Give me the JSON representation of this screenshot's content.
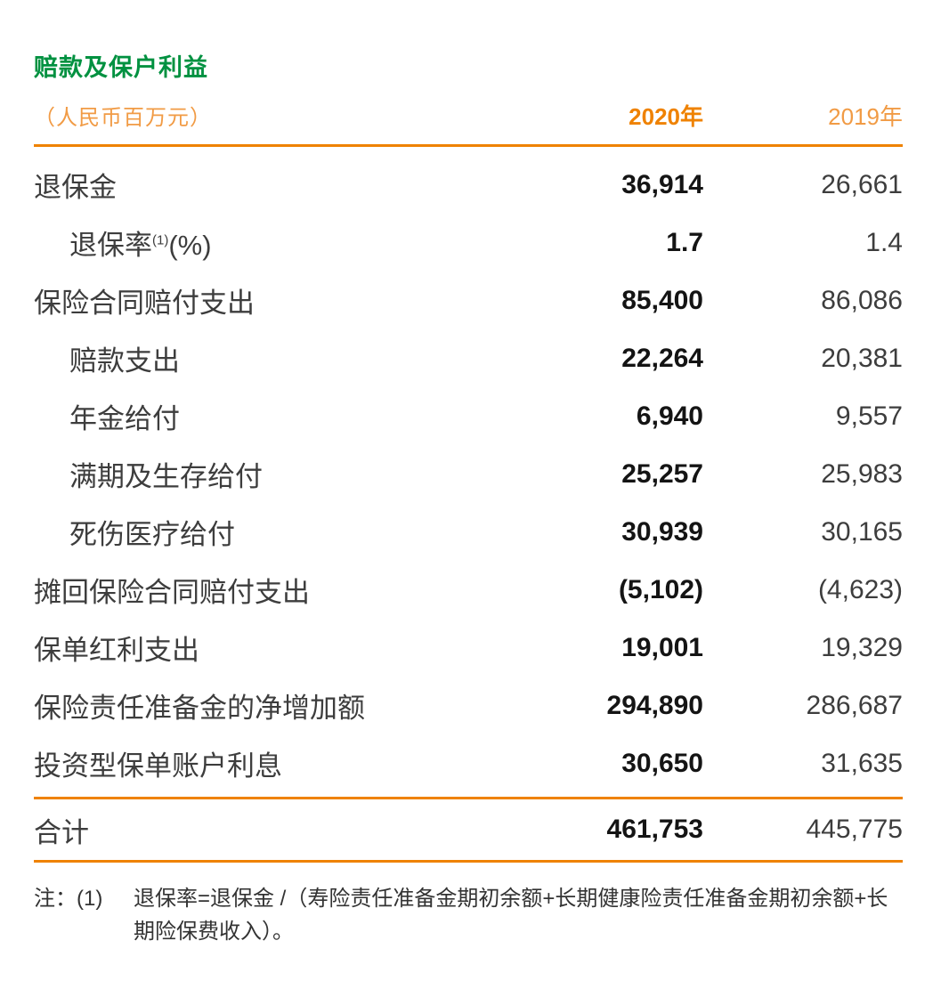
{
  "title": "赔款及保户利益",
  "unit_label": "（人民币百万元）",
  "columns": {
    "col2020": "2020年",
    "col2019": "2019年"
  },
  "rows": [
    {
      "label": "退保金",
      "indent": false,
      "v2020": "36,914",
      "v2019": "26,661"
    },
    {
      "label": "退保率",
      "sup": "(1)",
      "suffix": "(%)",
      "indent": true,
      "v2020": "1.7",
      "v2019": "1.4"
    },
    {
      "label": "保险合同赔付支出",
      "indent": false,
      "v2020": "85,400",
      "v2019": "86,086"
    },
    {
      "label": "赔款支出",
      "indent": true,
      "v2020": "22,264",
      "v2019": "20,381"
    },
    {
      "label": "年金给付",
      "indent": true,
      "v2020": "6,940",
      "v2019": "9,557"
    },
    {
      "label": "满期及生存给付",
      "indent": true,
      "v2020": "25,257",
      "v2019": "25,983"
    },
    {
      "label": "死伤医疗给付",
      "indent": true,
      "v2020": "30,939",
      "v2019": "30,165"
    },
    {
      "label": "摊回保险合同赔付支出",
      "indent": false,
      "v2020": "(5,102)",
      "v2019": "(4,623)"
    },
    {
      "label": "保单红利支出",
      "indent": false,
      "v2020": "19,001",
      "v2019": "19,329"
    },
    {
      "label": "保险责任准备金的净增加额",
      "indent": false,
      "v2020": "294,890",
      "v2019": "286,687"
    },
    {
      "label": "投资型保单账户利息",
      "indent": false,
      "v2020": "30,650",
      "v2019": "31,635"
    }
  ],
  "total": {
    "label": "合计",
    "v2020": "461,753",
    "v2019": "445,775"
  },
  "footnote": {
    "marker": "注：(1)",
    "text": "退保率=退保金 /（寿险责任准备金期初余额+长期健康险责任准备金期初余额+长期险保费收入）。"
  },
  "colors": {
    "green": "#009140",
    "orange": "#ef8200",
    "orange_light": "#f19b45"
  }
}
